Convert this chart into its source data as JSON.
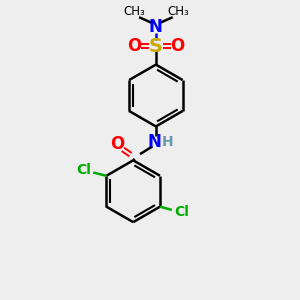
{
  "bg_color": "#eeeeee",
  "bond_color": "#000000",
  "N_color": "#0000ff",
  "O_color": "#ff0000",
  "S_color": "#ccaa00",
  "Cl_color": "#00aa00",
  "H_color": "#6699aa",
  "figsize": [
    3.0,
    3.0
  ],
  "dpi": 100,
  "xlim": [
    0,
    10
  ],
  "ylim": [
    0,
    10
  ]
}
